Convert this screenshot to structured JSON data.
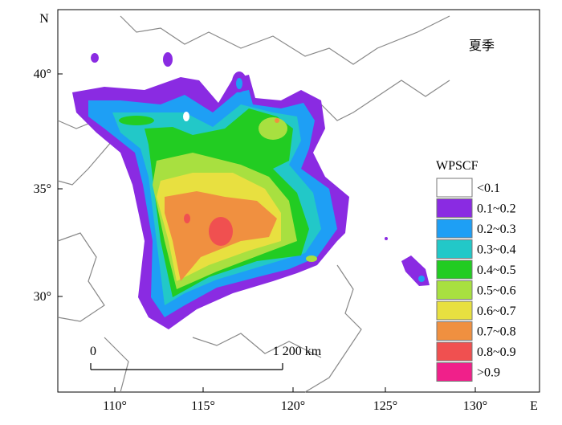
{
  "title": "夏季",
  "axes": {
    "north": "N",
    "east": "E",
    "lat_labels": [
      "40°",
      "35°",
      "30°"
    ],
    "lon_labels": [
      "110°",
      "115°",
      "120°",
      "125°",
      "130°"
    ]
  },
  "legend": {
    "title": "WPSCF",
    "items": [
      {
        "label": "<0.1",
        "color": "#ffffff"
      },
      {
        "label": "0.1~0.2",
        "color": "#8a2be2"
      },
      {
        "label": "0.2~0.3",
        "color": "#1e9ff5"
      },
      {
        "label": "0.3~0.4",
        "color": "#22c8c8"
      },
      {
        "label": "0.4~0.5",
        "color": "#22cc22"
      },
      {
        "label": "0.5~0.6",
        "color": "#a8e040"
      },
      {
        "label": "0.6~0.7",
        "color": "#e8e040"
      },
      {
        "label": "0.7~0.8",
        "color": "#f09040"
      },
      {
        "label": "0.8~0.9",
        "color": "#f05050"
      },
      {
        "label": ">0.9",
        "color": "#f0208a"
      }
    ]
  },
  "scale_bar": {
    "start": "0",
    "end": "1 200 km"
  }
}
